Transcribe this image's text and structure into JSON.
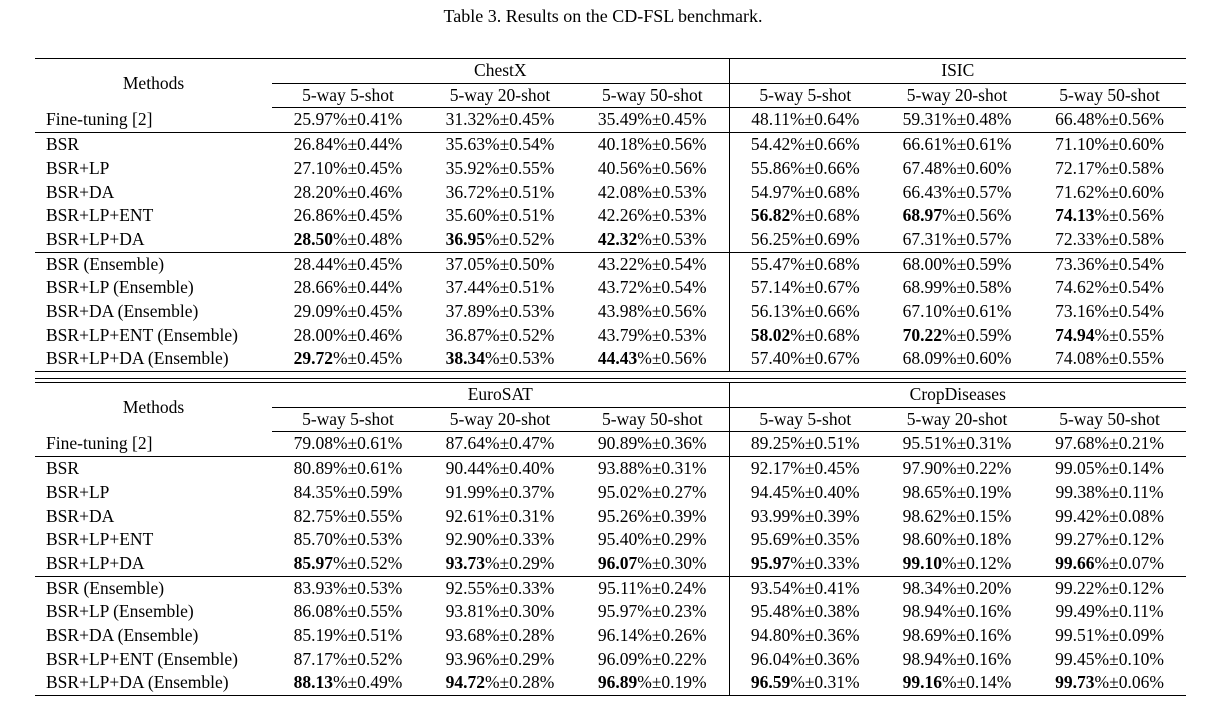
{
  "caption": "Table 3. Results on the CD-FSL benchmark.",
  "methods_header": "Methods",
  "shot_headers": [
    "5-way 5-shot",
    "5-way 20-shot",
    "5-way 50-shot"
  ],
  "tables": [
    {
      "datasets": [
        "ChestX",
        "ISIC"
      ],
      "groups": [
        [
          {
            "method": "Fine-tuning [2]",
            "cells": [
              [
                "25.97%",
                "±0.41%"
              ],
              [
                "31.32%",
                "±0.45%"
              ],
              [
                "35.49%",
                "±0.45%"
              ],
              [
                "48.11%",
                "±0.64%"
              ],
              [
                "59.31%",
                "±0.48%"
              ],
              [
                "66.48%",
                "±0.56%"
              ]
            ],
            "bold": [
              false,
              false,
              false,
              false,
              false,
              false
            ]
          }
        ],
        [
          {
            "method": "BSR",
            "cells": [
              [
                "26.84%",
                "±0.44%"
              ],
              [
                "35.63%",
                "±0.54%"
              ],
              [
                "40.18%",
                "±0.56%"
              ],
              [
                "54.42%",
                "±0.66%"
              ],
              [
                "66.61%",
                "±0.61%"
              ],
              [
                "71.10%",
                "±0.60%"
              ]
            ],
            "bold": [
              false,
              false,
              false,
              false,
              false,
              false
            ]
          },
          {
            "method": "BSR+LP",
            "cells": [
              [
                "27.10%",
                "±0.45%"
              ],
              [
                "35.92%",
                "±0.55%"
              ],
              [
                "40.56%",
                "±0.56%"
              ],
              [
                "55.86%",
                "±0.66%"
              ],
              [
                "67.48%",
                "±0.60%"
              ],
              [
                "72.17%",
                "±0.58%"
              ]
            ],
            "bold": [
              false,
              false,
              false,
              false,
              false,
              false
            ]
          },
          {
            "method": "BSR+DA",
            "cells": [
              [
                "28.20%",
                "±0.46%"
              ],
              [
                "36.72%",
                "±0.51%"
              ],
              [
                "42.08%",
                "±0.53%"
              ],
              [
                "54.97%",
                "±0.68%"
              ],
              [
                "66.43%",
                "±0.57%"
              ],
              [
                "71.62%",
                "±0.60%"
              ]
            ],
            "bold": [
              false,
              false,
              false,
              false,
              false,
              false
            ]
          },
          {
            "method": "BSR+LP+ENT",
            "cells": [
              [
                "26.86%",
                "±0.45%"
              ],
              [
                "35.60%",
                "±0.51%"
              ],
              [
                "42.26%",
                "±0.53%"
              ],
              [
                "56.82",
                "%±0.68%"
              ],
              [
                "68.97",
                "%±0.56%"
              ],
              [
                "74.13",
                "%±0.56%"
              ]
            ],
            "bold": [
              false,
              false,
              false,
              true,
              true,
              true
            ]
          },
          {
            "method": "BSR+LP+DA",
            "cells": [
              [
                "28.50",
                "%±0.48%"
              ],
              [
                "36.95",
                "%±0.52%"
              ],
              [
                "42.32",
                "%±0.53%"
              ],
              [
                "56.25%",
                "±0.69%"
              ],
              [
                "67.31%",
                "±0.57%"
              ],
              [
                "72.33%",
                "±0.58%"
              ]
            ],
            "bold": [
              true,
              true,
              true,
              false,
              false,
              false
            ]
          }
        ],
        [
          {
            "method": "BSR (Ensemble)",
            "cells": [
              [
                "28.44%",
                "±0.45%"
              ],
              [
                "37.05%",
                "±0.50%"
              ],
              [
                "43.22%",
                "±0.54%"
              ],
              [
                "55.47%",
                "±0.68%"
              ],
              [
                "68.00%",
                "±0.59%"
              ],
              [
                "73.36%",
                "±0.54%"
              ]
            ],
            "bold": [
              false,
              false,
              false,
              false,
              false,
              false
            ]
          },
          {
            "method": "BSR+LP (Ensemble)",
            "cells": [
              [
                "28.66%",
                "±0.44%"
              ],
              [
                "37.44%",
                "±0.51%"
              ],
              [
                "43.72%",
                "±0.54%"
              ],
              [
                "57.14%",
                "±0.67%"
              ],
              [
                "68.99%",
                "±0.58%"
              ],
              [
                "74.62%",
                "±0.54%"
              ]
            ],
            "bold": [
              false,
              false,
              false,
              false,
              false,
              false
            ]
          },
          {
            "method": "BSR+DA (Ensemble)",
            "cells": [
              [
                "29.09%",
                "±0.45%"
              ],
              [
                "37.89%",
                "±0.53%"
              ],
              [
                "43.98%",
                "±0.56%"
              ],
              [
                "56.13%",
                "±0.66%"
              ],
              [
                "67.10%",
                "±0.61%"
              ],
              [
                "73.16%",
                "±0.54%"
              ]
            ],
            "bold": [
              false,
              false,
              false,
              false,
              false,
              false
            ]
          },
          {
            "method": "BSR+LP+ENT (Ensemble)",
            "cells": [
              [
                "28.00%",
                "±0.46%"
              ],
              [
                "36.87%",
                "±0.52%"
              ],
              [
                "43.79%",
                "±0.53%"
              ],
              [
                "58.02",
                "%±0.68%"
              ],
              [
                "70.22",
                "%±0.59%"
              ],
              [
                "74.94",
                "%±0.55%"
              ]
            ],
            "bold": [
              false,
              false,
              false,
              true,
              true,
              true
            ]
          },
          {
            "method": "BSR+LP+DA (Ensemble)",
            "cells": [
              [
                "29.72",
                "%±0.45%"
              ],
              [
                "38.34",
                "%±0.53%"
              ],
              [
                "44.43",
                "%±0.56%"
              ],
              [
                "57.40%",
                "±0.67%"
              ],
              [
                "68.09%",
                "±0.60%"
              ],
              [
                "74.08%",
                "±0.55%"
              ]
            ],
            "bold": [
              true,
              true,
              true,
              false,
              false,
              false
            ]
          }
        ]
      ]
    },
    {
      "datasets": [
        "EuroSAT",
        "CropDiseases"
      ],
      "groups": [
        [
          {
            "method": "Fine-tuning [2]",
            "cells": [
              [
                "79.08%",
                "±0.61%"
              ],
              [
                "87.64%",
                "±0.47%"
              ],
              [
                "90.89%",
                "±0.36%"
              ],
              [
                "89.25%",
                "±0.51%"
              ],
              [
                "95.51%",
                "±0.31%"
              ],
              [
                "97.68%",
                "±0.21%"
              ]
            ],
            "bold": [
              false,
              false,
              false,
              false,
              false,
              false
            ]
          }
        ],
        [
          {
            "method": "BSR",
            "cells": [
              [
                "80.89%",
                "±0.61%"
              ],
              [
                "90.44%",
                "±0.40%"
              ],
              [
                "93.88%",
                "±0.31%"
              ],
              [
                "92.17%",
                "±0.45%"
              ],
              [
                "97.90%",
                "±0.22%"
              ],
              [
                "99.05%",
                "±0.14%"
              ]
            ],
            "bold": [
              false,
              false,
              false,
              false,
              false,
              false
            ]
          },
          {
            "method": "BSR+LP",
            "cells": [
              [
                "84.35%",
                "±0.59%"
              ],
              [
                "91.99%",
                "±0.37%"
              ],
              [
                "95.02%",
                "±0.27%"
              ],
              [
                "94.45%",
                "±0.40%"
              ],
              [
                "98.65%",
                "±0.19%"
              ],
              [
                "99.38%",
                "±0.11%"
              ]
            ],
            "bold": [
              false,
              false,
              false,
              false,
              false,
              false
            ]
          },
          {
            "method": "BSR+DA",
            "cells": [
              [
                "82.75%",
                "±0.55%"
              ],
              [
                "92.61%",
                "±0.31%"
              ],
              [
                "95.26%",
                "±0.39%"
              ],
              [
                "93.99%",
                "±0.39%"
              ],
              [
                "98.62%",
                "±0.15%"
              ],
              [
                "99.42%",
                "±0.08%"
              ]
            ],
            "bold": [
              false,
              false,
              false,
              false,
              false,
              false
            ]
          },
          {
            "method": "BSR+LP+ENT",
            "cells": [
              [
                "85.70%",
                "±0.53%"
              ],
              [
                "92.90%",
                "±0.33%"
              ],
              [
                "95.40%",
                "±0.29%"
              ],
              [
                "95.69%",
                "±0.35%"
              ],
              [
                "98.60%",
                "±0.18%"
              ],
              [
                "99.27%",
                "±0.12%"
              ]
            ],
            "bold": [
              false,
              false,
              false,
              false,
              false,
              false
            ]
          },
          {
            "method": "BSR+LP+DA",
            "cells": [
              [
                "85.97",
                "%±0.52%"
              ],
              [
                "93.73",
                "%±0.29%"
              ],
              [
                "96.07",
                "%±0.30%"
              ],
              [
                "95.97",
                "%±0.33%"
              ],
              [
                "99.10",
                "%±0.12%"
              ],
              [
                "99.66",
                "%±0.07%"
              ]
            ],
            "bold": [
              true,
              true,
              true,
              true,
              true,
              true
            ]
          }
        ],
        [
          {
            "method": "BSR (Ensemble)",
            "cells": [
              [
                "83.93%",
                "±0.53%"
              ],
              [
                "92.55%",
                "±0.33%"
              ],
              [
                "95.11%",
                "±0.24%"
              ],
              [
                "93.54%",
                "±0.41%"
              ],
              [
                "98.34%",
                "±0.20%"
              ],
              [
                "99.22%",
                "±0.12%"
              ]
            ],
            "bold": [
              false,
              false,
              false,
              false,
              false,
              false
            ]
          },
          {
            "method": "BSR+LP (Ensemble)",
            "cells": [
              [
                "86.08%",
                "±0.55%"
              ],
              [
                "93.81%",
                "±0.30%"
              ],
              [
                "95.97%",
                "±0.23%"
              ],
              [
                "95.48%",
                "±0.38%"
              ],
              [
                "98.94%",
                "±0.16%"
              ],
              [
                "99.49%",
                "±0.11%"
              ]
            ],
            "bold": [
              false,
              false,
              false,
              false,
              false,
              false
            ]
          },
          {
            "method": "BSR+DA (Ensemble)",
            "cells": [
              [
                "85.19%",
                "±0.51%"
              ],
              [
                "93.68%",
                "±0.28%"
              ],
              [
                "96.14%",
                "±0.26%"
              ],
              [
                "94.80%",
                "±0.36%"
              ],
              [
                "98.69%",
                "±0.16%"
              ],
              [
                "99.51%",
                "±0.09%"
              ]
            ],
            "bold": [
              false,
              false,
              false,
              false,
              false,
              false
            ]
          },
          {
            "method": "BSR+LP+ENT (Ensemble)",
            "cells": [
              [
                "87.17%",
                "±0.52%"
              ],
              [
                "93.96%",
                "±0.29%"
              ],
              [
                "96.09%",
                "±0.22%"
              ],
              [
                "96.04%",
                "±0.36%"
              ],
              [
                "98.94%",
                "±0.16%"
              ],
              [
                "99.45%",
                "±0.10%"
              ]
            ],
            "bold": [
              false,
              false,
              false,
              false,
              false,
              false
            ]
          },
          {
            "method": "BSR+LP+DA (Ensemble)",
            "cells": [
              [
                "88.13",
                "%±0.49%"
              ],
              [
                "94.72",
                "%±0.28%"
              ],
              [
                "96.89",
                "%±0.19%"
              ],
              [
                "96.59",
                "%±0.31%"
              ],
              [
                "99.16",
                "%±0.14%"
              ],
              [
                "99.73",
                "%±0.06%"
              ]
            ],
            "bold": [
              true,
              true,
              true,
              true,
              true,
              true
            ]
          }
        ]
      ]
    }
  ]
}
